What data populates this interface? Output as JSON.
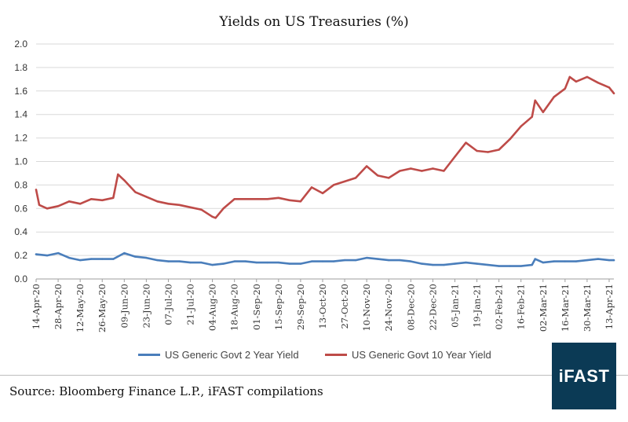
{
  "title": "Yields on US Treasuries (%)",
  "source": "Source: Bloomberg Finance L.P., iFAST compilations",
  "logo": "iFAST",
  "colors": {
    "two_year": "#4a7ebb",
    "ten_year": "#be4b48",
    "grid": "#d9d9d9",
    "axis_text": "#333333"
  },
  "chart_data": {
    "type": "line",
    "title": "Yields on US Treasuries (%)",
    "xlabel": "",
    "ylabel": "",
    "ylim": [
      0,
      2.0
    ],
    "yticks": [
      "0.0",
      "0.2",
      "0.4",
      "0.6",
      "0.8",
      "1.0",
      "1.2",
      "1.4",
      "1.6",
      "1.8",
      "2.0"
    ],
    "xticks": [
      "14-Apr-20",
      "28-Apr-20",
      "12-May-20",
      "26-May-20",
      "09-Jun-20",
      "23-Jun-20",
      "07-Jul-20",
      "21-Jul-20",
      "04-Aug-20",
      "18-Aug-20",
      "01-Sep-20",
      "15-Sep-20",
      "29-Sep-20",
      "13-Oct-20",
      "27-Oct-20",
      "10-Nov-20",
      "24-Nov-20",
      "08-Dec-20",
      "22-Dec-20",
      "05-Jan-21",
      "19-Jan-21",
      "02-Feb-21",
      "16-Feb-21",
      "02-Mar-21",
      "16-Mar-21",
      "30-Mar-21",
      "13-Apr-21"
    ],
    "grid": "horizontal",
    "legend": "bottom",
    "series": [
      {
        "name": "US Generic Govt 2 Year Yield",
        "x": [
          "14-Apr-20",
          "21-Apr-20",
          "28-Apr-20",
          "05-May-20",
          "12-May-20",
          "19-May-20",
          "26-May-20",
          "02-Jun-20",
          "09-Jun-20",
          "16-Jun-20",
          "23-Jun-20",
          "30-Jun-20",
          "07-Jul-20",
          "14-Jul-20",
          "21-Jul-20",
          "28-Jul-20",
          "04-Aug-20",
          "11-Aug-20",
          "18-Aug-20",
          "25-Aug-20",
          "01-Sep-20",
          "08-Sep-20",
          "15-Sep-20",
          "22-Sep-20",
          "29-Sep-20",
          "06-Oct-20",
          "13-Oct-20",
          "20-Oct-20",
          "27-Oct-20",
          "03-Nov-20",
          "10-Nov-20",
          "17-Nov-20",
          "24-Nov-20",
          "01-Dec-20",
          "08-Dec-20",
          "15-Dec-20",
          "22-Dec-20",
          "29-Dec-20",
          "05-Jan-21",
          "12-Jan-21",
          "19-Jan-21",
          "26-Jan-21",
          "02-Feb-21",
          "09-Feb-21",
          "16-Feb-21",
          "23-Feb-21",
          "25-Feb-21",
          "02-Mar-21",
          "09-Mar-21",
          "16-Mar-21",
          "23-Mar-21",
          "30-Mar-21",
          "06-Apr-21",
          "13-Apr-21",
          "16-Apr-21"
        ],
        "values": [
          0.21,
          0.2,
          0.22,
          0.18,
          0.16,
          0.17,
          0.17,
          0.17,
          0.22,
          0.19,
          0.18,
          0.16,
          0.15,
          0.15,
          0.14,
          0.14,
          0.12,
          0.13,
          0.15,
          0.15,
          0.14,
          0.14,
          0.14,
          0.13,
          0.13,
          0.15,
          0.15,
          0.15,
          0.16,
          0.16,
          0.18,
          0.17,
          0.16,
          0.16,
          0.15,
          0.13,
          0.12,
          0.12,
          0.13,
          0.14,
          0.13,
          0.12,
          0.11,
          0.11,
          0.11,
          0.12,
          0.17,
          0.14,
          0.15,
          0.15,
          0.15,
          0.16,
          0.17,
          0.16,
          0.16
        ]
      },
      {
        "name": "US Generic Govt 10 Year Yield",
        "x": [
          "14-Apr-20",
          "16-Apr-20",
          "21-Apr-20",
          "28-Apr-20",
          "05-May-20",
          "12-May-20",
          "19-May-20",
          "26-May-20",
          "02-Jun-20",
          "05-Jun-20",
          "09-Jun-20",
          "16-Jun-20",
          "23-Jun-20",
          "30-Jun-20",
          "07-Jul-20",
          "14-Jul-20",
          "21-Jul-20",
          "28-Jul-20",
          "04-Aug-20",
          "06-Aug-20",
          "11-Aug-20",
          "18-Aug-20",
          "25-Aug-20",
          "01-Sep-20",
          "08-Sep-20",
          "15-Sep-20",
          "22-Sep-20",
          "29-Sep-20",
          "06-Oct-20",
          "13-Oct-20",
          "20-Oct-20",
          "27-Oct-20",
          "03-Nov-20",
          "10-Nov-20",
          "17-Nov-20",
          "24-Nov-20",
          "01-Dec-20",
          "08-Dec-20",
          "15-Dec-20",
          "22-Dec-20",
          "29-Dec-20",
          "05-Jan-21",
          "12-Jan-21",
          "19-Jan-21",
          "26-Jan-21",
          "02-Feb-21",
          "09-Feb-21",
          "16-Feb-21",
          "23-Feb-21",
          "25-Feb-21",
          "02-Mar-21",
          "09-Mar-21",
          "16-Mar-21",
          "19-Mar-21",
          "23-Mar-21",
          "30-Mar-21",
          "06-Apr-21",
          "13-Apr-21",
          "16-Apr-21"
        ],
        "values": [
          0.76,
          0.63,
          0.6,
          0.62,
          0.66,
          0.64,
          0.68,
          0.67,
          0.69,
          0.89,
          0.84,
          0.74,
          0.7,
          0.66,
          0.64,
          0.63,
          0.61,
          0.59,
          0.53,
          0.52,
          0.6,
          0.68,
          0.68,
          0.68,
          0.68,
          0.69,
          0.67,
          0.66,
          0.78,
          0.73,
          0.8,
          0.83,
          0.86,
          0.96,
          0.88,
          0.86,
          0.92,
          0.94,
          0.92,
          0.94,
          0.92,
          1.04,
          1.16,
          1.09,
          1.08,
          1.1,
          1.19,
          1.3,
          1.38,
          1.52,
          1.42,
          1.55,
          1.62,
          1.72,
          1.68,
          1.72,
          1.67,
          1.63,
          1.58
        ]
      }
    ]
  }
}
